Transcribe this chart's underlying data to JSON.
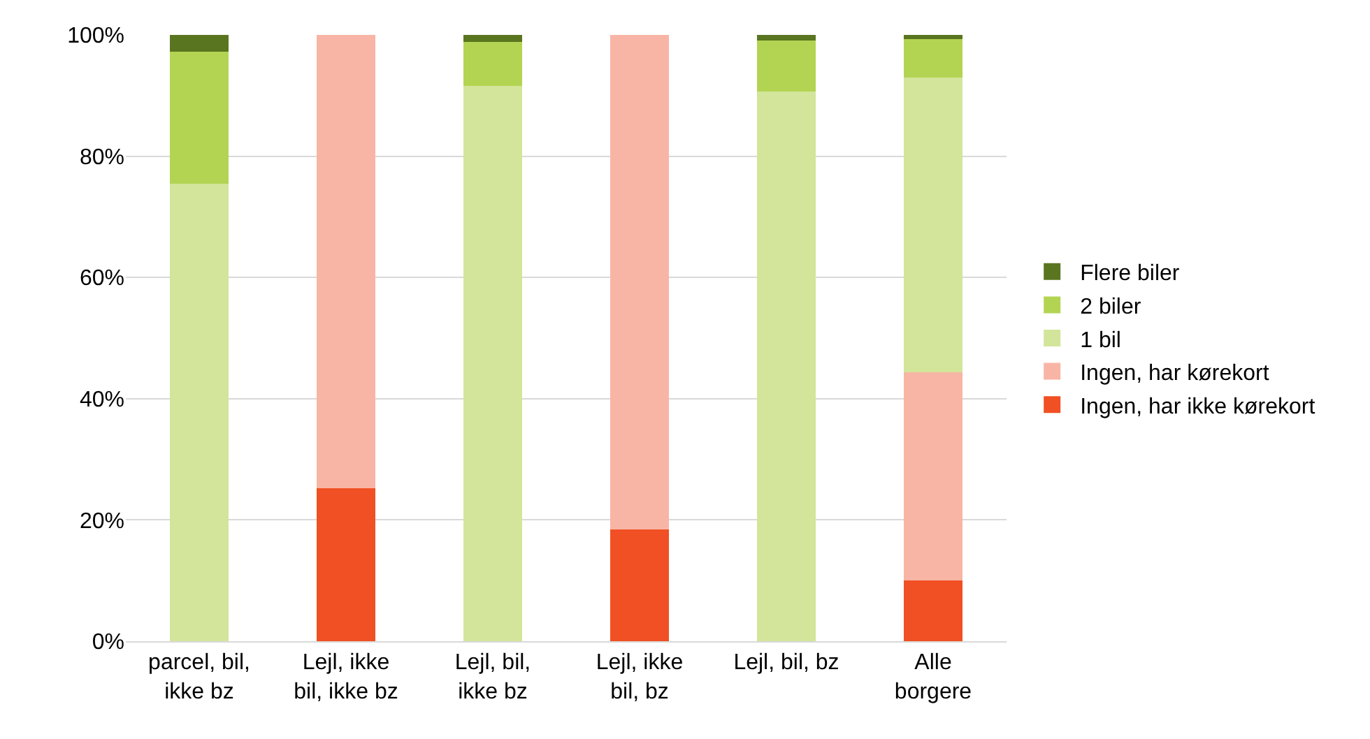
{
  "chart_data": {
    "type": "bar",
    "stacked": true,
    "categories": [
      "parcel, bil,\nikke bz",
      "Lejl, ikke\nbil, ikke bz",
      "Lejl, bil,\nikke bz",
      "Lejl, ikke\nbil, bz",
      "Lejl, bil, bz",
      "Alle\nborgere"
    ],
    "series": [
      {
        "name": "Ingen, har ikke kørekort",
        "color": "#f05023",
        "values": [
          0,
          25.2,
          0,
          18.4,
          0,
          10.0
        ]
      },
      {
        "name": "Ingen, har kørekort",
        "color": "#f8b5a5",
        "values": [
          0,
          74.8,
          0,
          81.6,
          0,
          34.3
        ]
      },
      {
        "name": "1 bil",
        "color": "#d3e59a",
        "values": [
          75.5,
          0,
          91.6,
          0,
          90.7,
          48.7
        ]
      },
      {
        "name": "2 biler",
        "color": "#b3d452",
        "values": [
          21.7,
          0,
          7.2,
          0,
          8.4,
          6.3
        ]
      },
      {
        "name": "Flere biler",
        "color": "#5a7520",
        "values": [
          2.8,
          0,
          1.2,
          0,
          0.9,
          0.7
        ]
      }
    ],
    "ylim": [
      0,
      100
    ],
    "yticks": [
      {
        "value": 0,
        "label": "0%"
      },
      {
        "value": 20,
        "label": "20%"
      },
      {
        "value": 40,
        "label": "40%"
      },
      {
        "value": 60,
        "label": "60%"
      },
      {
        "value": 80,
        "label": "80%"
      },
      {
        "value": 100,
        "label": "100%"
      }
    ],
    "grid": "y",
    "legend": "right"
  }
}
